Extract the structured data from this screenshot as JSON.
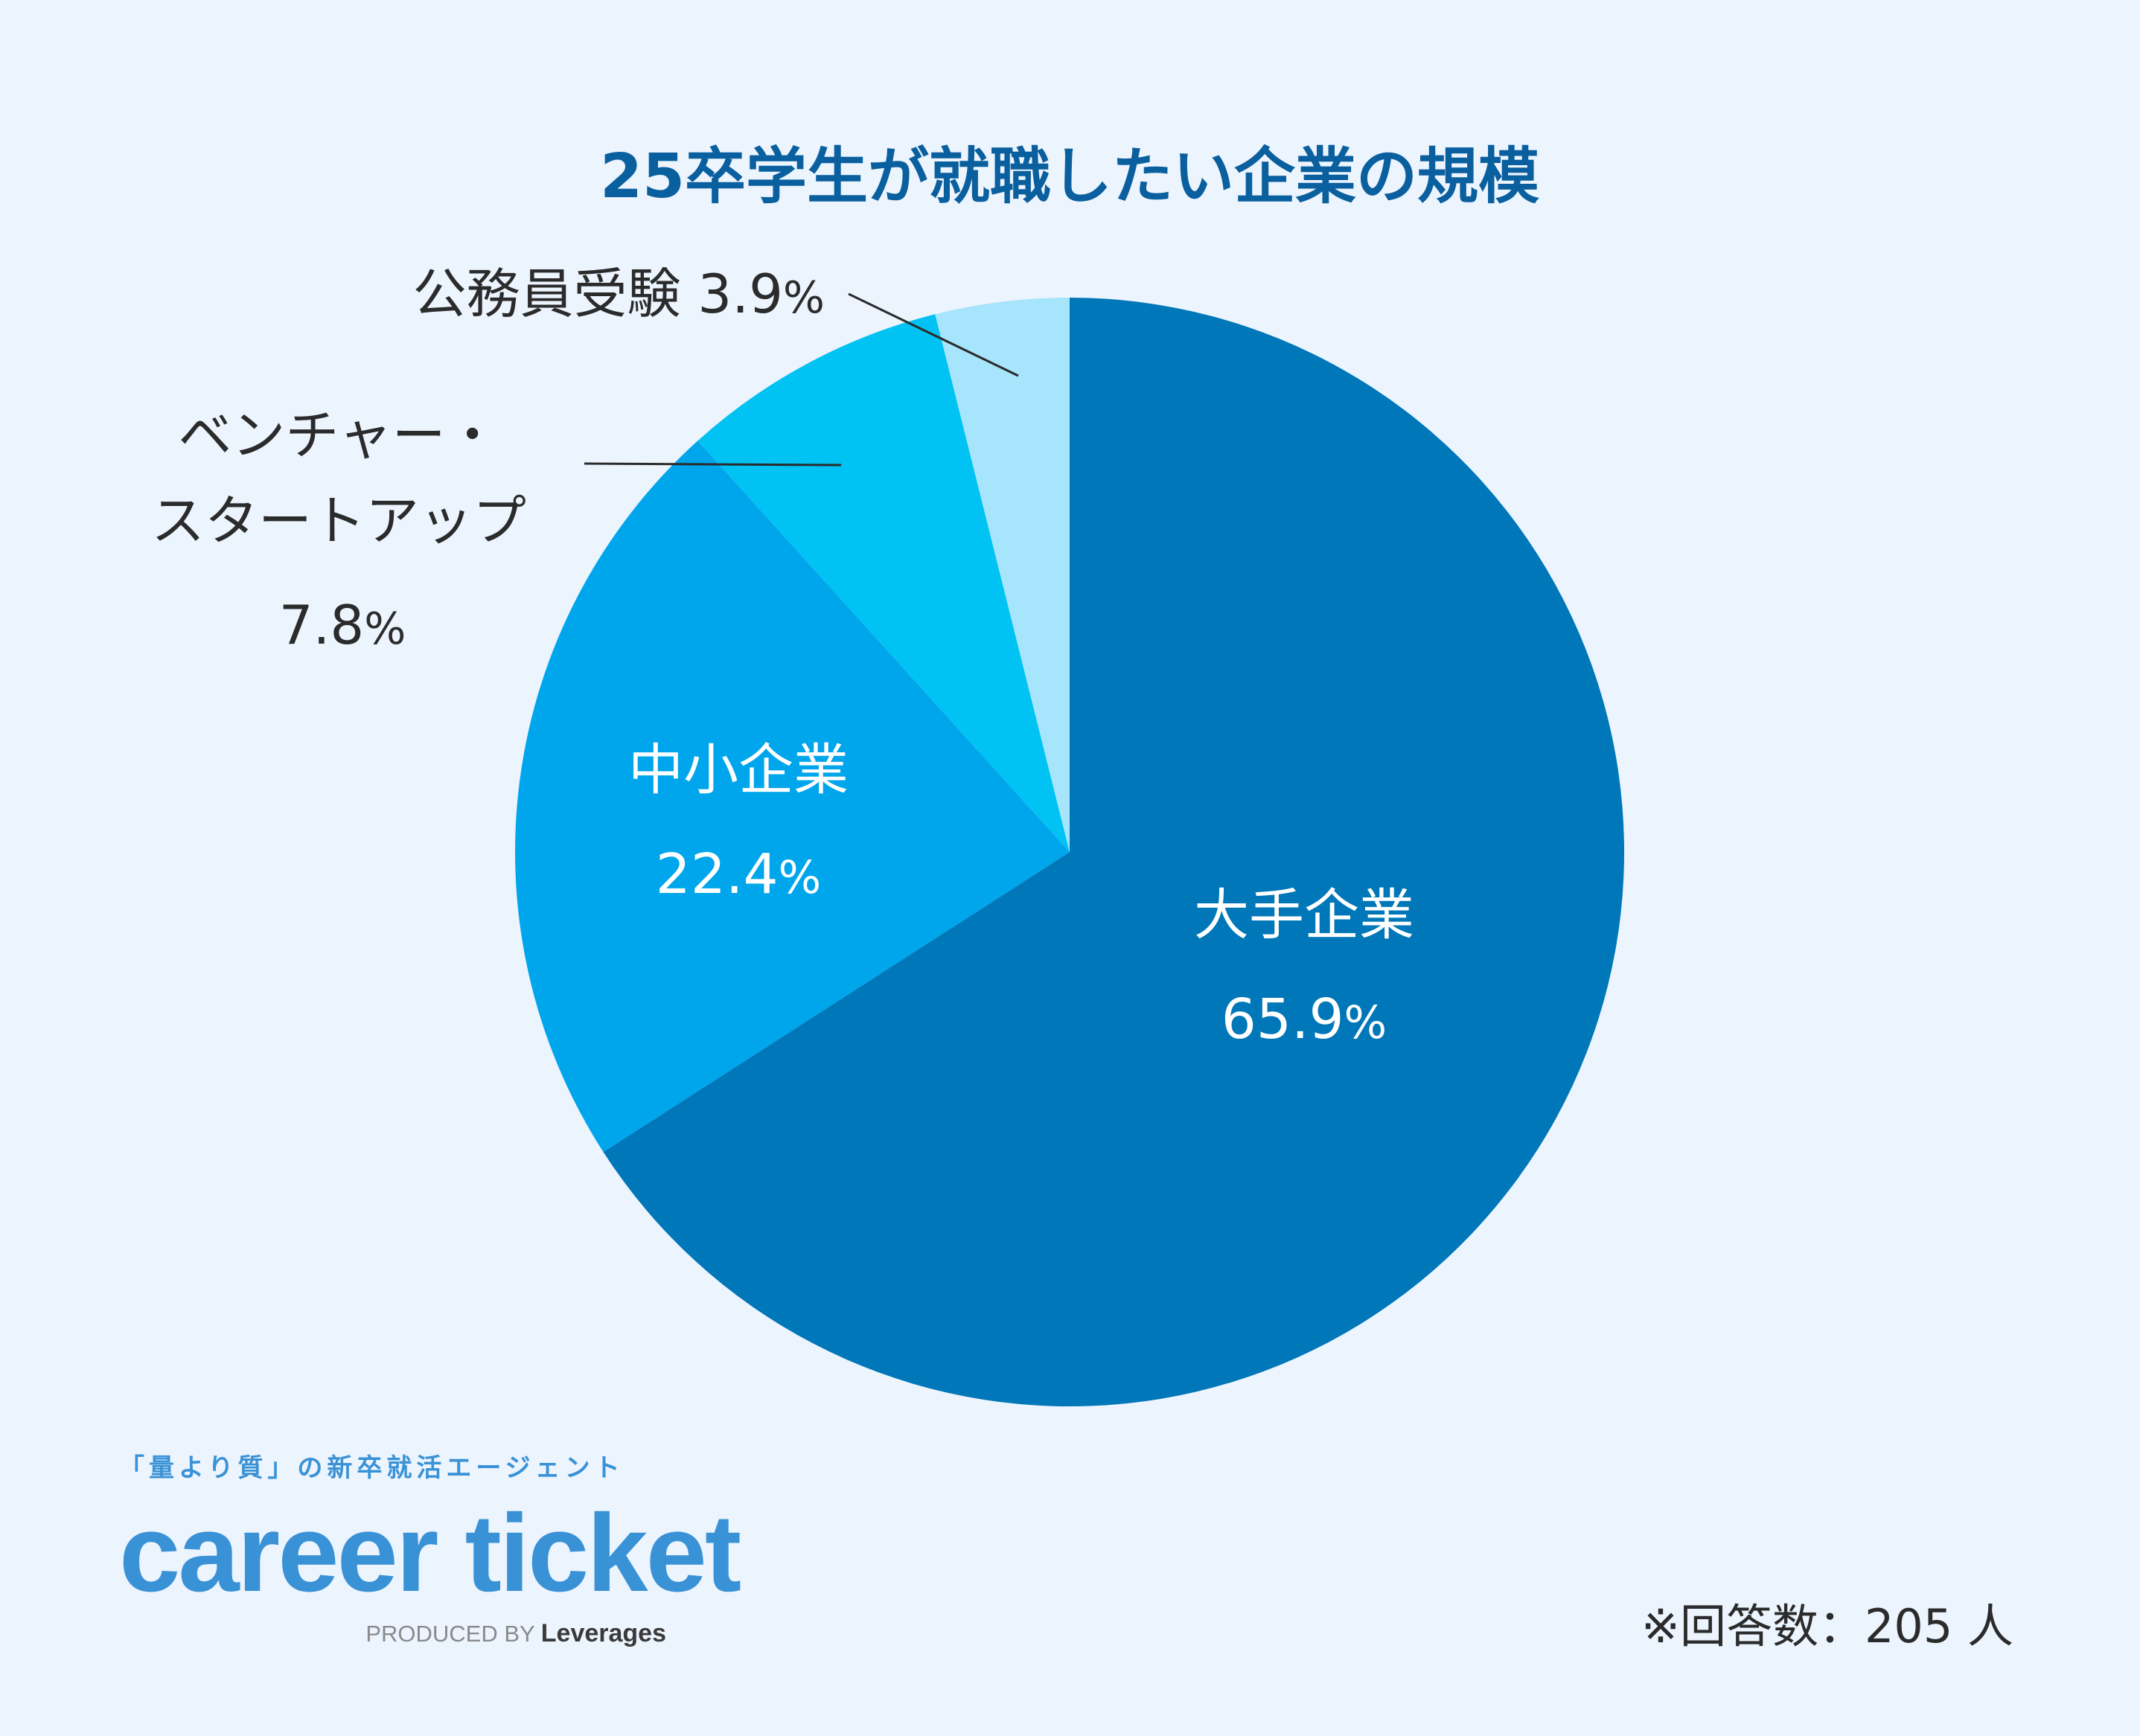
{
  "chart_data": {
    "type": "pie",
    "title": "25卒学生が就職したい企業の規模",
    "slices": [
      {
        "label": "大手企業",
        "value": 65.9,
        "value_label": "65.9",
        "color": "#0077b8"
      },
      {
        "label": "中小企業",
        "value": 22.4,
        "value_label": "22.4",
        "color": "#00a6ec"
      },
      {
        "label": "ベンチャー・スタートアップ",
        "label_lines": [
          "ベンチャー・",
          "スタートアップ"
        ],
        "value": 7.8,
        "value_label": "7.8",
        "color": "#00c3f3"
      },
      {
        "label": "公務員受験",
        "value": 3.9,
        "value_label": "3.9",
        "color": "#a6e5fb"
      }
    ],
    "percent_sign": "%",
    "start_angle": "12 o'clock",
    "direction": "clockwise"
  },
  "brand": {
    "tagline": "「量より質」の新卒就活エージェント",
    "logo": "career ticket",
    "produced_by": "PRODUCED BY",
    "company": "Leverages"
  },
  "note": "※回答数：205 人",
  "colors": {
    "background": "#ecf4fe",
    "title": "#0a5f9e",
    "brand": "#3a92d6"
  }
}
